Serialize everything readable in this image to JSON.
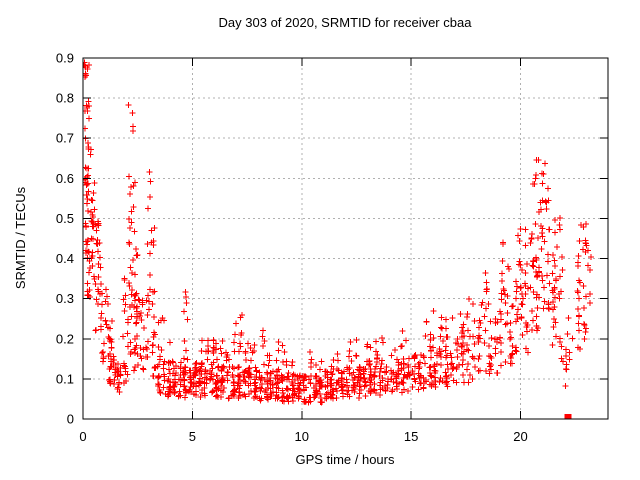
{
  "colors": {
    "background": "#ffffff",
    "axis": "#000000",
    "text": "#000000",
    "grid": "#b0b0b0",
    "marker": "#ff0000"
  },
  "chart_data": {
    "type": "scatter",
    "title": "Day 303 of 2020, SRMTID for receiver cbaa",
    "xlabel": "GPS time / hours",
    "ylabel": "SRMTID / TECUs",
    "xlim": [
      0,
      24
    ],
    "ylim": [
      0,
      0.9
    ],
    "xticks": [
      0,
      5,
      10,
      15,
      20
    ],
    "xtick_labels": [
      "0",
      "5",
      "10",
      "15",
      "20"
    ],
    "yticks": [
      0,
      0.1,
      0.2,
      0.3,
      0.4,
      0.5,
      0.6,
      0.7,
      0.8,
      0.9
    ],
    "ytick_labels": [
      "0",
      "0.1",
      "0.2",
      "0.3",
      "0.4",
      "0.5",
      "0.6",
      "0.7",
      "0.8",
      "0.9"
    ],
    "grid": true,
    "grid_style": "dotted",
    "legend": "none",
    "series": [
      {
        "name": "SRMTID",
        "marker": "plus",
        "color": "#ff0000",
        "clusters_format": "[x_start_hr, x_end_hr, y_min_TECU, y_max_TECU, point_count]",
        "clusters": [
          [
            0.04,
            0.3,
            0.835,
            0.89,
            10
          ],
          [
            0.04,
            0.32,
            0.72,
            0.8,
            8
          ],
          [
            0.04,
            0.5,
            0.61,
            0.71,
            9
          ],
          [
            0.03,
            0.6,
            0.48,
            0.61,
            28
          ],
          [
            0.05,
            0.8,
            0.4,
            0.5,
            26
          ],
          [
            0.15,
            0.85,
            0.3,
            0.42,
            24
          ],
          [
            0.5,
            1.2,
            0.22,
            0.34,
            20
          ],
          [
            0.8,
            1.4,
            0.13,
            0.25,
            18
          ],
          [
            1.1,
            1.8,
            0.08,
            0.16,
            22
          ],
          [
            1.5,
            2.1,
            0.065,
            0.14,
            20
          ],
          [
            2.05,
            2.3,
            0.7,
            0.82,
            4
          ],
          [
            2.05,
            2.4,
            0.55,
            0.65,
            5
          ],
          [
            2.05,
            2.45,
            0.42,
            0.55,
            9
          ],
          [
            1.8,
            2.05,
            0.2,
            0.4,
            8
          ],
          [
            2.05,
            2.5,
            0.27,
            0.42,
            16
          ],
          [
            2.0,
            2.55,
            0.12,
            0.27,
            14
          ],
          [
            2.3,
            2.75,
            0.24,
            0.32,
            14
          ],
          [
            2.3,
            2.85,
            0.1,
            0.24,
            14
          ],
          [
            2.95,
            3.15,
            0.5,
            0.63,
            4
          ],
          [
            2.9,
            3.3,
            0.32,
            0.5,
            9
          ],
          [
            2.85,
            3.35,
            0.2,
            0.32,
            12
          ],
          [
            2.8,
            3.4,
            0.09,
            0.2,
            14
          ],
          [
            3.35,
            4.3,
            0.055,
            0.14,
            52
          ],
          [
            3.4,
            3.8,
            0.14,
            0.26,
            9
          ],
          [
            3.9,
            4.15,
            0.14,
            0.2,
            4
          ],
          [
            4.3,
            5.0,
            0.05,
            0.13,
            40
          ],
          [
            4.5,
            4.78,
            0.26,
            0.35,
            4
          ],
          [
            4.45,
            4.85,
            0.13,
            0.26,
            6
          ],
          [
            5.0,
            6.0,
            0.055,
            0.14,
            58
          ],
          [
            5.3,
            6.05,
            0.14,
            0.21,
            12
          ],
          [
            5.85,
            6.15,
            0.14,
            0.2,
            6
          ],
          [
            6.0,
            7.0,
            0.05,
            0.14,
            58
          ],
          [
            6.2,
            7.0,
            0.14,
            0.2,
            8
          ],
          [
            6.8,
            7.6,
            0.15,
            0.26,
            12
          ],
          [
            7.0,
            8.0,
            0.05,
            0.13,
            58
          ],
          [
            7.3,
            7.9,
            0.13,
            0.19,
            8
          ],
          [
            8.0,
            9.0,
            0.045,
            0.12,
            58
          ],
          [
            8.1,
            8.6,
            0.12,
            0.24,
            9
          ],
          [
            8.8,
            9.3,
            0.12,
            0.22,
            7
          ],
          [
            9.0,
            10.0,
            0.04,
            0.11,
            58
          ],
          [
            9.2,
            9.7,
            0.11,
            0.16,
            6
          ],
          [
            10.0,
            11.0,
            0.04,
            0.11,
            58
          ],
          [
            10.3,
            10.95,
            0.11,
            0.17,
            7
          ],
          [
            11.0,
            12.0,
            0.05,
            0.12,
            58
          ],
          [
            11.3,
            11.95,
            0.12,
            0.18,
            7
          ],
          [
            12.0,
            13.0,
            0.05,
            0.13,
            56
          ],
          [
            12.1,
            12.6,
            0.13,
            0.2,
            7
          ],
          [
            12.9,
            13.2,
            0.13,
            0.21,
            5
          ],
          [
            13.0,
            14.0,
            0.06,
            0.15,
            52
          ],
          [
            13.3,
            13.85,
            0.15,
            0.21,
            6
          ],
          [
            14.0,
            15.0,
            0.06,
            0.16,
            48
          ],
          [
            14.2,
            14.95,
            0.16,
            0.22,
            6
          ],
          [
            15.0,
            16.0,
            0.07,
            0.17,
            44
          ],
          [
            15.5,
            16.1,
            0.17,
            0.27,
            10
          ],
          [
            16.0,
            17.0,
            0.08,
            0.19,
            42
          ],
          [
            16.3,
            17.0,
            0.19,
            0.29,
            10
          ],
          [
            17.0,
            18.0,
            0.09,
            0.22,
            40
          ],
          [
            17.2,
            18.0,
            0.22,
            0.3,
            9
          ],
          [
            18.0,
            19.0,
            0.11,
            0.27,
            36
          ],
          [
            18.1,
            18.6,
            0.27,
            0.38,
            9
          ],
          [
            19.0,
            19.7,
            0.13,
            0.32,
            30
          ],
          [
            19.1,
            19.6,
            0.32,
            0.46,
            9
          ],
          [
            19.7,
            20.4,
            0.16,
            0.38,
            32
          ],
          [
            19.8,
            20.4,
            0.38,
            0.48,
            9
          ],
          [
            20.4,
            21.4,
            0.22,
            0.48,
            52
          ],
          [
            20.5,
            21.35,
            0.48,
            0.6,
            15
          ],
          [
            20.6,
            21.2,
            0.6,
            0.67,
            6
          ],
          [
            21.4,
            22.0,
            0.18,
            0.42,
            28
          ],
          [
            21.5,
            21.95,
            0.42,
            0.52,
            6
          ],
          [
            21.85,
            22.1,
            0.06,
            0.18,
            7
          ],
          [
            22.1,
            22.5,
            0.12,
            0.26,
            6
          ],
          [
            22.55,
            23.05,
            0.17,
            0.45,
            30
          ],
          [
            22.6,
            23.0,
            0.45,
            0.49,
            3
          ],
          [
            23.0,
            23.25,
            0.28,
            0.44,
            7
          ]
        ],
        "notable_points": [
          [
            0.1,
            0.885
          ],
          [
            2.15,
            0.81
          ],
          [
            2.2,
            0.755
          ],
          [
            3.05,
            0.62
          ],
          [
            20.7,
            0.665
          ],
          [
            21.1,
            0.65
          ],
          [
            22.8,
            0.475
          ]
        ]
      },
      {
        "name": "flagged-point",
        "marker": "filled-square",
        "color": "#ff0000",
        "points": [
          [
            22.17,
            0.004
          ]
        ]
      }
    ]
  }
}
